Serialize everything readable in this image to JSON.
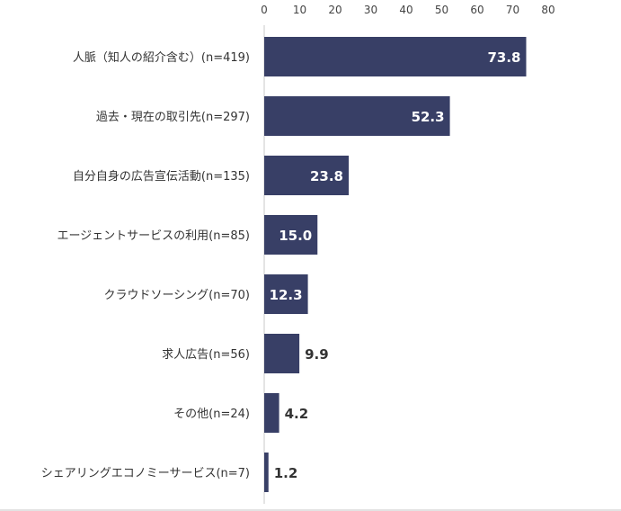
{
  "chart_data": {
    "type": "bar",
    "orientation": "horizontal",
    "categories": [
      "人脈（知人の紹介含む）(n=419)",
      "過去・現在の取引先(n=297)",
      "自分自身の広告宣伝活動(n=135)",
      "エージェントサービスの利用(n=85)",
      "クラウドソーシング(n=70)",
      "求人広告(n=56)",
      "その他(n=24)",
      "シェアリングエコノミーサービス(n=7)"
    ],
    "values": [
      73.8,
      52.3,
      23.8,
      15.0,
      12.3,
      9.9,
      4.2,
      1.2
    ],
    "value_labels": [
      "73.8",
      "52.3",
      "23.8",
      "15.0",
      "12.3",
      "9.9",
      "4.2",
      "1.2"
    ],
    "xlim": [
      0,
      80
    ],
    "xticks": [
      0,
      10,
      20,
      30,
      40,
      50,
      60,
      70,
      80
    ],
    "axis_position": "top",
    "grid": false,
    "bar_color": "#383f66"
  }
}
